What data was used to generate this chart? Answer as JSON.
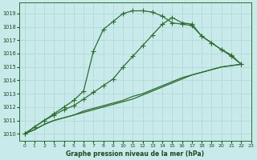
{
  "bg_color": "#c8eaea",
  "grid_color": "#b0d4d4",
  "line_color": "#2d6e2d",
  "title": "Graphe pression niveau de la mer (hPa)",
  "xlim": [
    -0.5,
    23
  ],
  "ylim": [
    1009.5,
    1019.8
  ],
  "yticks": [
    1010,
    1011,
    1012,
    1013,
    1014,
    1015,
    1016,
    1017,
    1018,
    1019
  ],
  "xticks": [
    0,
    1,
    2,
    3,
    4,
    5,
    6,
    7,
    8,
    9,
    10,
    11,
    12,
    13,
    14,
    15,
    16,
    17,
    18,
    19,
    20,
    21,
    22,
    23
  ],
  "s0": [
    1010.0,
    1010.5,
    1011.0,
    1011.4,
    1011.8,
    1012.1,
    1012.6,
    1013.1,
    1013.6,
    1014.1,
    1015.0,
    1015.8,
    1016.6,
    1017.4,
    1018.2,
    1018.7,
    1018.3,
    1018.2,
    1017.3,
    1016.8,
    1016.3,
    1015.8,
    1015.2
  ],
  "s1": [
    1010.0,
    1010.3,
    1010.7,
    1011.0,
    1011.2,
    1011.4,
    1011.6,
    1011.8,
    1012.0,
    1012.2,
    1012.4,
    1012.6,
    1012.9,
    1013.2,
    1013.5,
    1013.8,
    1014.1,
    1014.4,
    1014.6,
    1014.8,
    1015.0,
    1015.1,
    1015.2
  ],
  "s2": [
    1010.0,
    1010.3,
    1010.7,
    1011.0,
    1011.2,
    1011.4,
    1011.7,
    1011.9,
    1012.1,
    1012.3,
    1012.5,
    1012.8,
    1013.0,
    1013.3,
    1013.6,
    1013.9,
    1014.2,
    1014.4,
    1014.6,
    1014.8,
    1015.0,
    1015.1,
    1015.2
  ],
  "s3": [
    1010.0,
    1010.5,
    1011.0,
    1011.5,
    1012.0,
    1012.5,
    1013.2,
    1016.2,
    1017.8,
    1018.4,
    1019.0,
    1019.2,
    1019.2,
    1019.1,
    1018.8,
    1018.3,
    1018.2,
    1018.1,
    1017.3,
    1016.8,
    1016.3,
    1015.9,
    1015.2
  ],
  "marker": "+",
  "marker_size": 4,
  "lw": 0.9
}
